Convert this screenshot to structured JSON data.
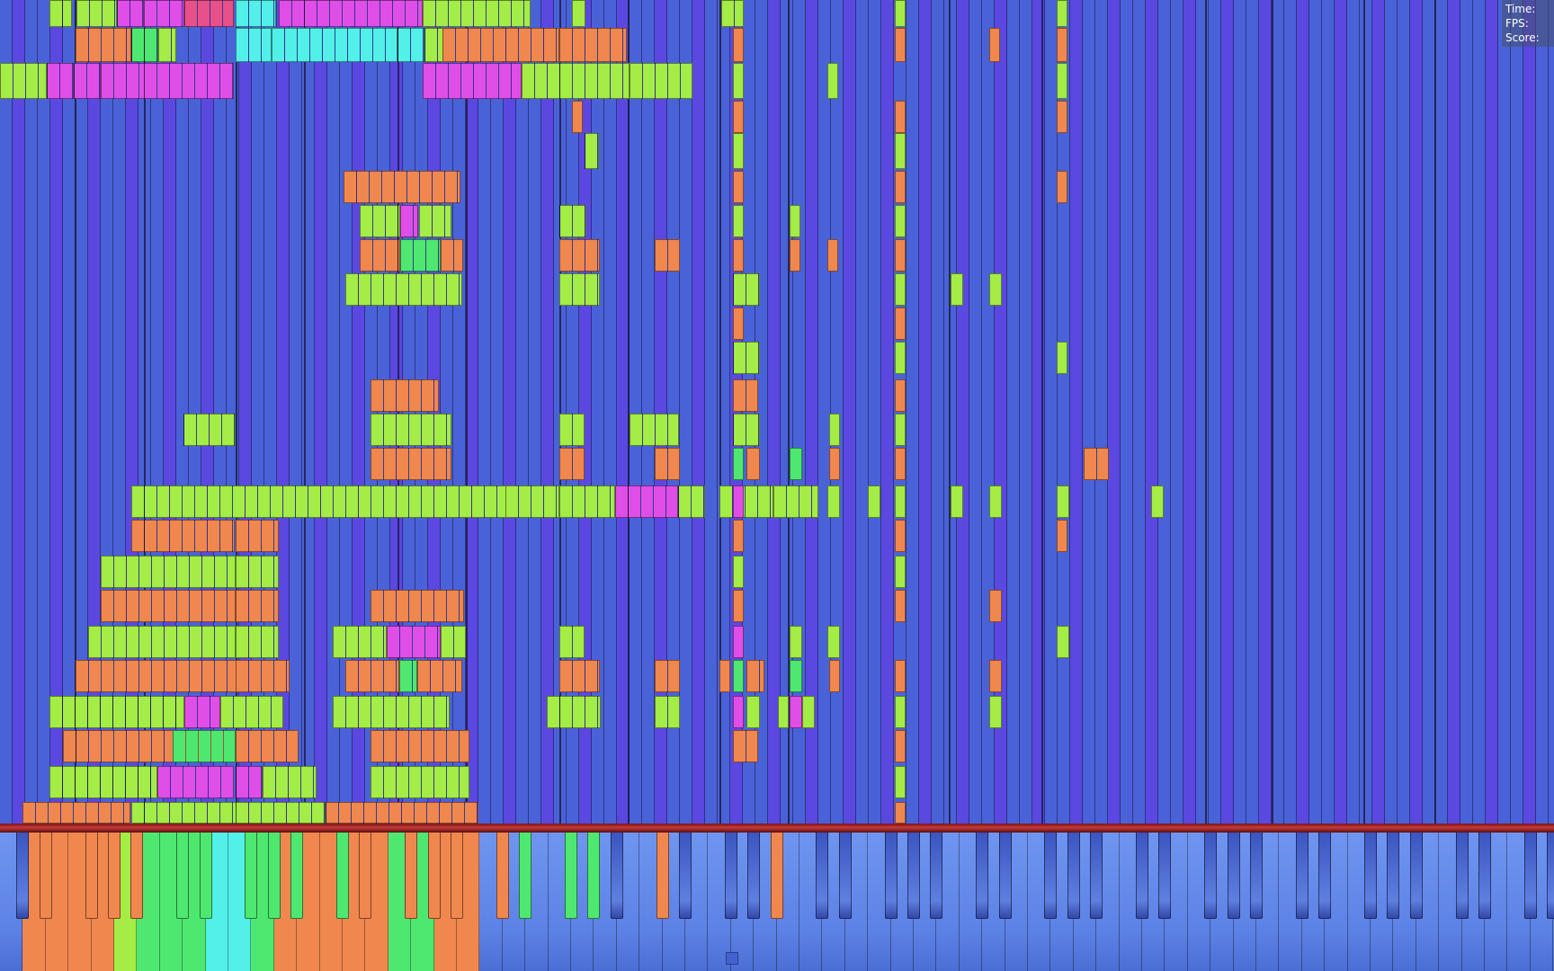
{
  "hud": {
    "time_label": "Time:",
    "fps_label": "FPS:",
    "score_label": "Score:"
  },
  "colors": {
    "background_lane": "#4a62d8",
    "lane_alt": "#5a48e0",
    "orange": "#f0874e",
    "lime": "#a4ec46",
    "magenta": "#e04ee8",
    "cyan": "#52f0e8",
    "green": "#4ee870",
    "pink": "#e8508a",
    "hit_bar": "#c43a3a",
    "key_blue": "#6f95f0"
  },
  "icons": {
    "center_marker": "square-marker-icon"
  },
  "piano": {
    "pressed_white_keys": [
      1,
      2,
      3,
      4,
      5,
      6,
      7,
      8,
      9,
      10,
      11,
      12,
      13,
      14,
      15,
      16,
      17,
      18,
      19,
      20
    ],
    "pressed_black_keys": [
      1,
      2,
      3,
      4,
      5,
      6,
      7,
      8,
      9,
      10,
      11,
      12,
      13,
      14,
      15,
      16,
      17,
      18,
      20,
      24
    ]
  }
}
